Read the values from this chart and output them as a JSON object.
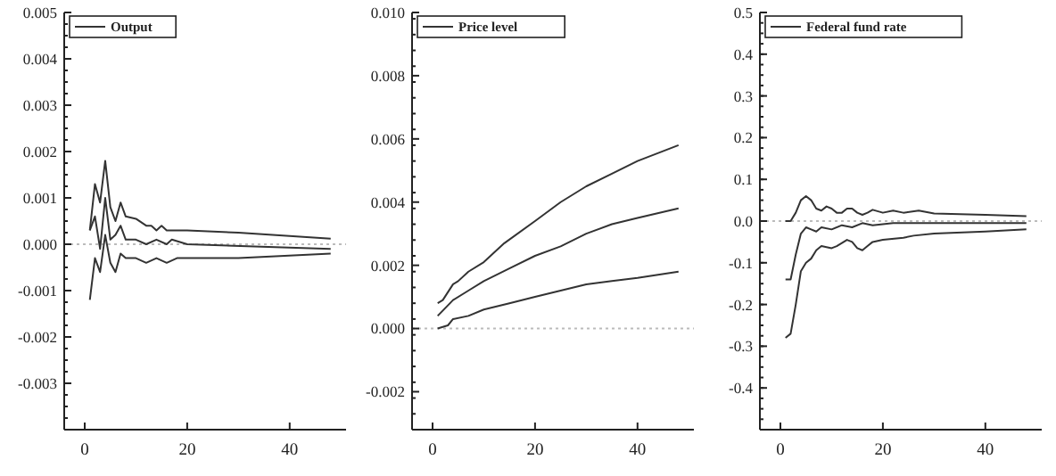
{
  "chart_data": [
    {
      "type": "line",
      "legend": "top left",
      "xlim": [
        -4,
        51
      ],
      "xticks": [
        0,
        20,
        40
      ],
      "ylim": [
        -0.004,
        0.005
      ],
      "yticks": [
        {
          "value": -0.003,
          "label": "-0.003"
        },
        {
          "value": -0.002,
          "label": "-0.002"
        },
        {
          "value": -0.001,
          "label": "-0.001"
        },
        {
          "value": 0,
          "label": "0.000"
        },
        {
          "value": 0.001,
          "label": "0.001"
        },
        {
          "value": 0.002,
          "label": "0.002"
        },
        {
          "value": 0.003,
          "label": "0.003"
        },
        {
          "value": 0.004,
          "label": "0.004"
        },
        {
          "value": 0.005,
          "label": "0.005"
        }
      ],
      "ref_lines": [
        {
          "axis": "y",
          "value": 0,
          "color": "#bbbbbb",
          "line_style": "dotted"
        }
      ],
      "series": [
        {
          "color": "#333333",
          "x": [
            1,
            2,
            3,
            4,
            5,
            6,
            7,
            8,
            10,
            12,
            13,
            14,
            15,
            16,
            17,
            20,
            30,
            48
          ],
          "values": [
            0.0003,
            0.0013,
            0.0009,
            0.0018,
            0.0008,
            0.0005,
            0.0009,
            0.0006,
            0.00055,
            0.0004,
            0.0004,
            0.0003,
            0.0004,
            0.0003,
            0.0003,
            0.0003,
            0.00025,
            0.00012
          ]
        },
        {
          "name": "Output",
          "color": "#333333",
          "x": [
            1,
            2,
            3,
            4,
            5,
            6,
            7,
            8,
            10,
            12,
            14,
            16,
            17,
            20,
            48
          ],
          "values": [
            0.0003,
            0.0006,
            -0.0001,
            0.001,
            0.0001,
            0.0002,
            0.0004,
            0.0001,
            0.0001,
            0,
            0.0001,
            0,
            0.0001,
            0,
            -0.0001
          ]
        },
        {
          "color": "#333333",
          "x": [
            1,
            2,
            3,
            4,
            5,
            6,
            7,
            8,
            10,
            12,
            14,
            16,
            18,
            30,
            48
          ],
          "values": [
            -0.0012,
            -0.0003,
            -0.0006,
            0.0002,
            -0.0004,
            -0.0006,
            -0.0002,
            -0.0003,
            -0.0003,
            -0.0004,
            -0.0003,
            -0.0004,
            -0.0003,
            -0.0003,
            -0.0002
          ]
        }
      ]
    },
    {
      "type": "line",
      "legend": "top left",
      "xlim": [
        -4,
        51
      ],
      "xticks": [
        0,
        20,
        40
      ],
      "ylim": [
        -0.0032,
        0.01
      ],
      "yticks": [
        {
          "value": -0.002,
          "label": "-0.002"
        },
        {
          "value": 0,
          "label": "0.000"
        },
        {
          "value": 0.002,
          "label": "0.002"
        },
        {
          "value": 0.004,
          "label": "0.004"
        },
        {
          "value": 0.006,
          "label": "0.006"
        },
        {
          "value": 0.008,
          "label": "0.008"
        },
        {
          "value": 0.01,
          "label": "0.010"
        }
      ],
      "ref_lines": [
        {
          "axis": "y",
          "value": 0,
          "color": "#bbbbbb",
          "line_style": "dotted"
        }
      ],
      "series": [
        {
          "color": "#333333",
          "x": [
            1,
            2,
            4,
            5,
            7,
            10,
            14,
            20,
            25,
            30,
            35,
            40,
            48
          ],
          "values": [
            0.0008,
            0.0009,
            0.0014,
            0.0015,
            0.0018,
            0.0021,
            0.0027,
            0.0034,
            0.004,
            0.0045,
            0.0049,
            0.0053,
            0.0058
          ]
        },
        {
          "name": "Price level",
          "color": "#333333",
          "x": [
            1,
            4,
            7,
            10,
            15,
            20,
            25,
            30,
            35,
            40,
            48
          ],
          "values": [
            0.0004,
            0.0009,
            0.0012,
            0.0015,
            0.0019,
            0.0023,
            0.0026,
            0.003,
            0.0033,
            0.0035,
            0.0038
          ]
        },
        {
          "color": "#333333",
          "x": [
            1,
            3,
            4,
            7,
            10,
            15,
            20,
            25,
            30,
            35,
            40,
            48
          ],
          "values": [
            0,
            0.0001,
            0.0003,
            0.0004,
            0.0006,
            0.0008,
            0.001,
            0.0012,
            0.0014,
            0.0015,
            0.0016,
            0.0018
          ]
        }
      ]
    },
    {
      "type": "line",
      "legend": "top left",
      "xlim": [
        -4,
        51
      ],
      "xticks": [
        0,
        20,
        40
      ],
      "ylim": [
        -0.5,
        0.5
      ],
      "yticks": [
        {
          "value": -0.4,
          "label": "-0.4"
        },
        {
          "value": -0.3,
          "label": "-0.3"
        },
        {
          "value": -0.2,
          "label": "-0.2"
        },
        {
          "value": -0.1,
          "label": "-0.1"
        },
        {
          "value": 0,
          "label": "0.0"
        },
        {
          "value": 0.1,
          "label": "0.1"
        },
        {
          "value": 0.2,
          "label": "0.2"
        },
        {
          "value": 0.3,
          "label": "0.3"
        },
        {
          "value": 0.4,
          "label": "0.4"
        },
        {
          "value": 0.5,
          "label": "0.5"
        }
      ],
      "ref_lines": [
        {
          "axis": "y",
          "value": 0,
          "color": "#bbbbbb",
          "line_style": "dotted"
        }
      ],
      "series": [
        {
          "color": "#333333",
          "x": [
            1,
            2,
            3,
            4,
            5,
            6,
            7,
            8,
            9,
            10,
            11,
            12,
            13,
            14,
            15,
            16,
            17,
            18,
            20,
            22,
            24,
            27,
            30,
            40,
            48
          ],
          "values": [
            0,
            0,
            0.02,
            0.05,
            0.06,
            0.05,
            0.03,
            0.025,
            0.035,
            0.03,
            0.02,
            0.02,
            0.03,
            0.03,
            0.02,
            0.015,
            0.02,
            0.027,
            0.02,
            0.025,
            0.02,
            0.025,
            0.018,
            0.015,
            0.012
          ]
        },
        {
          "name": "Federal fund rate",
          "color": "#333333",
          "x": [
            1,
            2,
            3,
            4,
            5,
            6,
            7,
            8,
            10,
            12,
            14,
            16,
            18,
            22,
            30,
            48
          ],
          "values": [
            -0.14,
            -0.14,
            -0.08,
            -0.03,
            -0.015,
            -0.02,
            -0.025,
            -0.015,
            -0.02,
            -0.01,
            -0.015,
            -0.005,
            -0.01,
            -0.005,
            -0.005,
            -0.005
          ]
        },
        {
          "color": "#333333",
          "x": [
            1,
            2,
            3,
            4,
            5,
            6,
            7,
            8,
            10,
            11,
            13,
            14,
            15,
            16,
            17,
            18,
            20,
            24,
            26,
            30,
            40,
            48
          ],
          "values": [
            -0.28,
            -0.27,
            -0.2,
            -0.12,
            -0.1,
            -0.09,
            -0.07,
            -0.06,
            -0.065,
            -0.06,
            -0.045,
            -0.05,
            -0.065,
            -0.07,
            -0.06,
            -0.05,
            -0.045,
            -0.04,
            -0.035,
            -0.03,
            -0.025,
            -0.02
          ]
        }
      ]
    }
  ]
}
